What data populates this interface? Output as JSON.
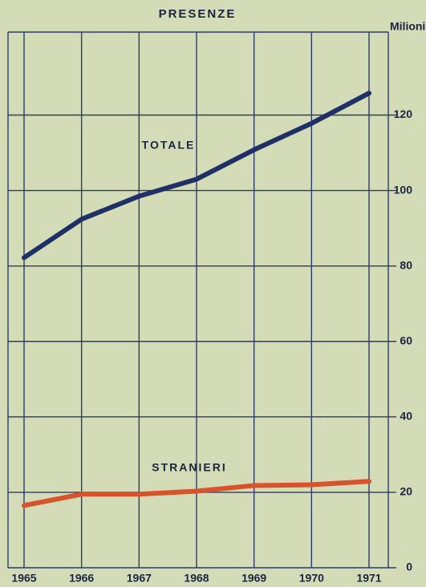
{
  "chart_data": {
    "type": "line",
    "title": "PRESENZE",
    "y_axis_label": "Milioni",
    "categories": [
      "1965",
      "1966",
      "1967",
      "1968",
      "1969",
      "1970",
      "1971"
    ],
    "series": [
      {
        "name": "TOTALE",
        "color": "#1f2f68",
        "values": [
          82.2,
          92.4,
          98.5,
          103,
          110.8,
          117.8,
          125.8
        ]
      },
      {
        "name": "STRANIERI",
        "color": "#d8532c",
        "values": [
          16.5,
          19.5,
          19.5,
          20.3,
          21.8,
          22,
          22.9
        ]
      }
    ],
    "ylim": [
      0,
      142
    ],
    "yticks": [
      0,
      20,
      40,
      60,
      80,
      100,
      120
    ],
    "grid": true,
    "y_axis_side": "right"
  }
}
